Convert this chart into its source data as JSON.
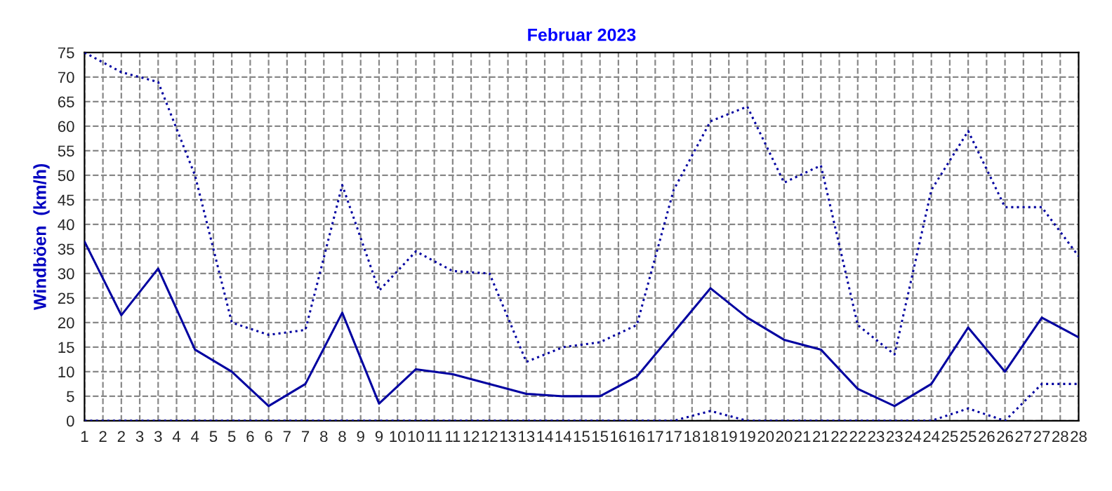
{
  "chart_data": {
    "type": "line",
    "title": "Februar 2023",
    "ylabel": "Windböen  (km/h)",
    "x": [
      1,
      2,
      3,
      4,
      5,
      6,
      7,
      8,
      9,
      10,
      11,
      12,
      13,
      14,
      15,
      16,
      17,
      18,
      19,
      20,
      21,
      22,
      23,
      24,
      25,
      26,
      27,
      28
    ],
    "series": [
      {
        "color": "#0000a0",
        "line_style": "dotted",
        "values": [
          75,
          71,
          69,
          50,
          20,
          17.5,
          18.5,
          48,
          26.5,
          34.5,
          30.5,
          30,
          12,
          15,
          16,
          19.5,
          47,
          61,
          64,
          48.5,
          52,
          19.5,
          13.5,
          47,
          59,
          43.5,
          43.5,
          33.5
        ]
      },
      {
        "color": "#0000a0",
        "line_style": "solid",
        "values": [
          36.5,
          21.5,
          31,
          14.5,
          10,
          3,
          7.5,
          22,
          3.5,
          10.5,
          9.5,
          7.5,
          5.5,
          5,
          5,
          9,
          18,
          27,
          21,
          16.5,
          14.5,
          6.5,
          3,
          7.5,
          19,
          10,
          21,
          17
        ]
      },
      {
        "color": "#0000a0",
        "line_style": "dotted",
        "values": [
          0,
          0,
          0,
          0,
          0,
          0,
          0,
          0,
          0,
          0,
          0,
          0,
          0,
          0,
          0,
          0,
          0,
          2,
          0,
          0,
          0,
          0,
          0,
          0,
          2.5,
          0,
          7.5,
          7.5
        ]
      }
    ],
    "xlim": [
      1,
      28
    ],
    "xticks": [
      1,
      {
        "value": 1.5,
        "label": "2"
      },
      2,
      {
        "value": 2.5,
        "label": "3"
      },
      3,
      {
        "value": 3.5,
        "label": "4"
      },
      4,
      {
        "value": 4.5,
        "label": "5"
      },
      5,
      {
        "value": 5.5,
        "label": "6"
      },
      6,
      {
        "value": 6.5,
        "label": "7"
      },
      7,
      {
        "value": 7.5,
        "label": "8"
      },
      8,
      {
        "value": 8.5,
        "label": "9"
      },
      9,
      {
        "value": 9.5,
        "label": "10"
      },
      10,
      {
        "value": 10.5,
        "label": "11"
      },
      11,
      {
        "value": 11.5,
        "label": "12"
      },
      12,
      {
        "value": 12.5,
        "label": "13"
      },
      13,
      {
        "value": 13.5,
        "label": "14"
      },
      14,
      {
        "value": 14.5,
        "label": "15"
      },
      15,
      {
        "value": 15.5,
        "label": "16"
      },
      16,
      {
        "value": 16.5,
        "label": "17"
      },
      17,
      {
        "value": 17.5,
        "label": "18"
      },
      18,
      {
        "value": 18.5,
        "label": "19"
      },
      19,
      {
        "value": 19.5,
        "label": "20"
      },
      20,
      {
        "value": 20.5,
        "label": "21"
      },
      21,
      {
        "value": 21.5,
        "label": "22"
      },
      22,
      {
        "value": 22.5,
        "label": "23"
      },
      23,
      {
        "value": 23.5,
        "label": "24"
      },
      24,
      {
        "value": 24.5,
        "label": "25"
      },
      25,
      {
        "value": 25.5,
        "label": "26"
      },
      26,
      {
        "value": 26.5,
        "label": "27"
      },
      27,
      {
        "value": 27.5,
        "label": "28"
      },
      28
    ],
    "ylim": [
      0,
      75
    ],
    "yticks": [
      0,
      5,
      10,
      15,
      20,
      25,
      30,
      35,
      40,
      45,
      50,
      55,
      60,
      65,
      70,
      75
    ],
    "grid": true,
    "legend": false
  }
}
